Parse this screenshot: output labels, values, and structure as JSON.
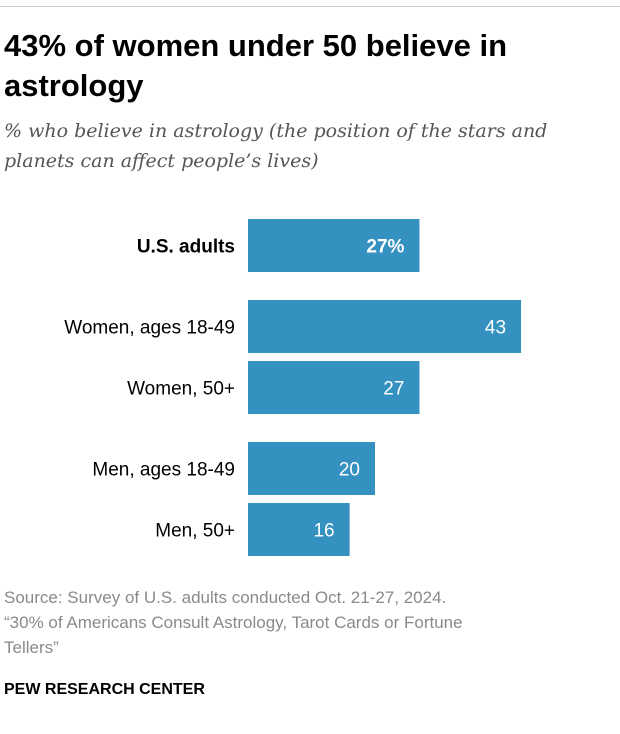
{
  "chart_data": {
    "type": "bar",
    "orientation": "horizontal",
    "title": "43% of women under 50 believe in astrology",
    "subtitle": "% who believe in astrology (the position of the stars and planets can affect people’s lives)",
    "categories": [
      "U.S. adults",
      "Women, ages 18-49",
      "Women, 50+",
      "Men, ages 18-49",
      "Men, 50+"
    ],
    "values": [
      27,
      43,
      27,
      20,
      16
    ],
    "value_labels": [
      "27%",
      "43",
      "27",
      "20",
      "16"
    ],
    "xlim": [
      0,
      60
    ],
    "grid": false,
    "legend": "none",
    "bar_color": "#3591c0"
  },
  "source": {
    "line1": "Source: Survey of U.S. adults conducted Oct. 21-27, 2024.",
    "line2": "“30% of Americans Consult Astrology, Tarot Cards or Fortune",
    "line3": "Tellers”"
  },
  "brand": "PEW RESEARCH CENTER",
  "colors": {
    "bar": "#3591c0",
    "source_text": "#8a8a8a",
    "subtitle_text": "#555555"
  }
}
